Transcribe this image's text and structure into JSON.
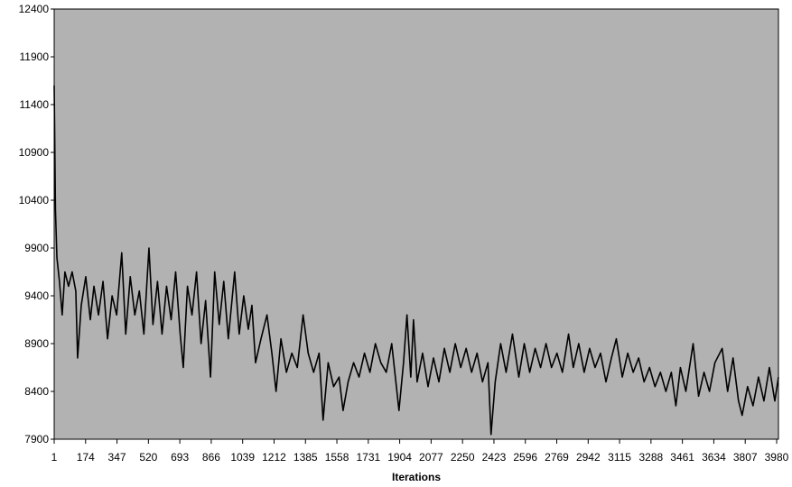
{
  "chart_data": {
    "type": "line",
    "x_label": "Iterations",
    "x": [
      1,
      8,
      16,
      30,
      45,
      60,
      80,
      100,
      120,
      130,
      150,
      175,
      200,
      220,
      245,
      270,
      295,
      320,
      345,
      373,
      395,
      420,
      445,
      470,
      495,
      523,
      545,
      570,
      595,
      620,
      645,
      670,
      695,
      712,
      735,
      760,
      785,
      810,
      835,
      862,
      885,
      910,
      935,
      960,
      995,
      1020,
      1045,
      1070,
      1090,
      1110,
      1140,
      1173,
      1200,
      1223,
      1250,
      1280,
      1310,
      1340,
      1372,
      1400,
      1430,
      1460,
      1482,
      1510,
      1540,
      1570,
      1592,
      1620,
      1650,
      1680,
      1710,
      1740,
      1770,
      1800,
      1830,
      1860,
      1880,
      1900,
      1925,
      1944,
      1965,
      1980,
      2000,
      2030,
      2060,
      2090,
      2120,
      2150,
      2180,
      2210,
      2240,
      2270,
      2300,
      2330,
      2360,
      2390,
      2407,
      2430,
      2460,
      2490,
      2525,
      2560,
      2590,
      2620,
      2650,
      2680,
      2710,
      2740,
      2770,
      2800,
      2834,
      2860,
      2890,
      2920,
      2950,
      2980,
      3010,
      3040,
      3070,
      3097,
      3130,
      3160,
      3190,
      3220,
      3250,
      3280,
      3310,
      3340,
      3370,
      3400,
      3425,
      3450,
      3480,
      3520,
      3550,
      3580,
      3610,
      3640,
      3680,
      3710,
      3740,
      3770,
      3790,
      3820,
      3850,
      3880,
      3910,
      3940,
      3970,
      3990
    ],
    "series": [
      {
        "color": "#000000",
        "values": [
          11600,
          10300,
          9800,
          9550,
          9200,
          9650,
          9500,
          9650,
          9450,
          8750,
          9300,
          9600,
          9150,
          9500,
          9200,
          9550,
          8950,
          9400,
          9200,
          9850,
          9000,
          9600,
          9200,
          9450,
          9000,
          9900,
          9100,
          9550,
          9000,
          9500,
          9150,
          9650,
          9000,
          8650,
          9500,
          9200,
          9650,
          8900,
          9350,
          8550,
          9650,
          9100,
          9550,
          8950,
          9650,
          9000,
          9400,
          9050,
          9300,
          8700,
          8950,
          9200,
          8800,
          8400,
          8950,
          8600,
          8800,
          8650,
          9200,
          8800,
          8600,
          8800,
          8100,
          8700,
          8450,
          8550,
          8200,
          8500,
          8700,
          8550,
          8800,
          8600,
          8900,
          8700,
          8600,
          8900,
          8550,
          8200,
          8700,
          9200,
          8550,
          9150,
          8500,
          8800,
          8450,
          8750,
          8500,
          8850,
          8600,
          8900,
          8650,
          8850,
          8600,
          8800,
          8500,
          8700,
          7950,
          8500,
          8900,
          8600,
          9000,
          8550,
          8900,
          8600,
          8850,
          8650,
          8900,
          8650,
          8800,
          8600,
          9000,
          8650,
          8900,
          8600,
          8850,
          8650,
          8800,
          8500,
          8750,
          8950,
          8550,
          8800,
          8600,
          8750,
          8500,
          8650,
          8450,
          8600,
          8400,
          8600,
          8250,
          8650,
          8400,
          8900,
          8350,
          8600,
          8400,
          8700,
          8850,
          8400,
          8750,
          8300,
          8150,
          8450,
          8250,
          8550,
          8300,
          8650,
          8300,
          8550
        ]
      }
    ],
    "xlim": [
      1,
      3990
    ],
    "xticks": [
      1,
      174,
      347,
      520,
      693,
      866,
      1039,
      1212,
      1385,
      1558,
      1731,
      1904,
      2077,
      2250,
      2423,
      2596,
      2769,
      2942,
      3115,
      3288,
      3461,
      3634,
      3807,
      3980
    ],
    "ylim": [
      7900,
      12400
    ],
    "yticks": [
      7900,
      8400,
      8900,
      9400,
      9900,
      10400,
      10900,
      11400,
      11900,
      12400
    ],
    "grid": false
  }
}
